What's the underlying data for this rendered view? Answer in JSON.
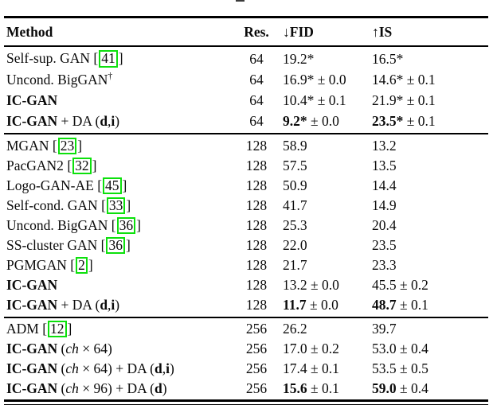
{
  "colors": {
    "text": "#0a0a0a",
    "cite_border": "#0ce00c",
    "rule": "#000000",
    "background": "#ffffff"
  },
  "header": {
    "method": "Method",
    "res": "Res.",
    "fid": "↓FID",
    "is": "↑IS"
  },
  "groups": [
    {
      "rows": [
        {
          "method": [
            {
              "t": "Self-sup. GAN ",
              "s": "r"
            },
            {
              "t": "[",
              "s": "r"
            },
            {
              "cite": "41"
            },
            {
              "t": "]",
              "s": "r"
            }
          ],
          "res": "64",
          "fid": {
            "m": "19.2*",
            "pm": "",
            "b": false
          },
          "is": {
            "m": "16.5*",
            "pm": "",
            "b": false
          }
        },
        {
          "method": [
            {
              "t": "Uncond. BigGAN",
              "s": "r"
            },
            {
              "t": "†",
              "s": "sup"
            }
          ],
          "res": "64",
          "fid": {
            "m": "16.9*",
            "pm": "± 0.0",
            "b": false
          },
          "is": {
            "m": "14.6*",
            "pm": "± 0.1",
            "b": false
          }
        },
        {
          "method": [
            {
              "t": "IC-GAN",
              "s": "b"
            }
          ],
          "res": "64",
          "fid": {
            "m": "10.4*",
            "pm": "± 0.1",
            "b": false
          },
          "is": {
            "m": "21.9*",
            "pm": "± 0.1",
            "b": false
          }
        },
        {
          "method": [
            {
              "t": "IC-GAN",
              "s": "b"
            },
            {
              "t": " + DA (",
              "s": "r"
            },
            {
              "t": "d",
              "s": "b"
            },
            {
              "t": ",",
              "s": "r"
            },
            {
              "t": "i",
              "s": "b"
            },
            {
              "t": ")",
              "s": "r"
            }
          ],
          "res": "64",
          "fid": {
            "m": "9.2*",
            "pm": "± 0.0",
            "b": true
          },
          "is": {
            "m": "23.5*",
            "pm": "± 0.1",
            "b": true
          }
        }
      ]
    },
    {
      "rows": [
        {
          "method": [
            {
              "t": "MGAN ",
              "s": "r"
            },
            {
              "t": "[",
              "s": "r"
            },
            {
              "cite": "23"
            },
            {
              "t": "]",
              "s": "r"
            }
          ],
          "res": "128",
          "fid": {
            "m": "58.9",
            "pm": "",
            "b": false
          },
          "is": {
            "m": "13.2",
            "pm": "",
            "b": false
          }
        },
        {
          "method": [
            {
              "t": "PacGAN2 ",
              "s": "r"
            },
            {
              "t": "[",
              "s": "r"
            },
            {
              "cite": "32"
            },
            {
              "t": "]",
              "s": "r"
            }
          ],
          "res": "128",
          "fid": {
            "m": "57.5",
            "pm": "",
            "b": false
          },
          "is": {
            "m": "13.5",
            "pm": "",
            "b": false
          }
        },
        {
          "method": [
            {
              "t": "Logo-GAN-AE ",
              "s": "r"
            },
            {
              "t": "[",
              "s": "r"
            },
            {
              "cite": "45"
            },
            {
              "t": "]",
              "s": "r"
            }
          ],
          "res": "128",
          "fid": {
            "m": "50.9",
            "pm": "",
            "b": false
          },
          "is": {
            "m": "14.4",
            "pm": "",
            "b": false
          }
        },
        {
          "method": [
            {
              "t": "Self-cond. GAN ",
              "s": "r"
            },
            {
              "t": "[",
              "s": "r"
            },
            {
              "cite": "33"
            },
            {
              "t": "]",
              "s": "r"
            }
          ],
          "res": "128",
          "fid": {
            "m": "41.7",
            "pm": "",
            "b": false
          },
          "is": {
            "m": "14.9",
            "pm": "",
            "b": false
          }
        },
        {
          "method": [
            {
              "t": "Uncond. BigGAN ",
              "s": "r"
            },
            {
              "t": "[",
              "s": "r"
            },
            {
              "cite": "36"
            },
            {
              "t": "]",
              "s": "r"
            }
          ],
          "res": "128",
          "fid": {
            "m": "25.3",
            "pm": "",
            "b": false
          },
          "is": {
            "m": "20.4",
            "pm": "",
            "b": false
          }
        },
        {
          "method": [
            {
              "t": "SS-cluster GAN ",
              "s": "r"
            },
            {
              "t": "[",
              "s": "r"
            },
            {
              "cite": "36"
            },
            {
              "t": "]",
              "s": "r"
            }
          ],
          "res": "128",
          "fid": {
            "m": "22.0",
            "pm": "",
            "b": false
          },
          "is": {
            "m": "23.5",
            "pm": "",
            "b": false
          }
        },
        {
          "method": [
            {
              "t": "PGMGAN ",
              "s": "r"
            },
            {
              "t": "[",
              "s": "r"
            },
            {
              "cite": "2"
            },
            {
              "t": "]",
              "s": "r"
            }
          ],
          "res": "128",
          "fid": {
            "m": "21.7",
            "pm": "",
            "b": false
          },
          "is": {
            "m": "23.3",
            "pm": "",
            "b": false
          }
        },
        {
          "method": [
            {
              "t": "IC-GAN",
              "s": "b"
            }
          ],
          "res": "128",
          "fid": {
            "m": "13.2",
            "pm": "± 0.0",
            "b": false
          },
          "is": {
            "m": "45.5",
            "pm": "± 0.2",
            "b": false
          }
        },
        {
          "method": [
            {
              "t": "IC-GAN",
              "s": "b"
            },
            {
              "t": " + DA (",
              "s": "r"
            },
            {
              "t": "d",
              "s": "b"
            },
            {
              "t": ",",
              "s": "r"
            },
            {
              "t": "i",
              "s": "b"
            },
            {
              "t": ")",
              "s": "r"
            }
          ],
          "res": "128",
          "fid": {
            "m": "11.7",
            "pm": "± 0.0",
            "b": true
          },
          "is": {
            "m": "48.7",
            "pm": "± 0.1",
            "b": true
          }
        }
      ]
    },
    {
      "rows": [
        {
          "method": [
            {
              "t": "ADM ",
              "s": "r"
            },
            {
              "t": "[",
              "s": "r"
            },
            {
              "cite": "12"
            },
            {
              "t": "]",
              "s": "r"
            }
          ],
          "res": "256",
          "fid": {
            "m": "26.2",
            "pm": "",
            "b": false
          },
          "is": {
            "m": "39.7",
            "pm": "",
            "b": false
          }
        },
        {
          "method": [
            {
              "t": "IC-GAN",
              "s": "b"
            },
            {
              "t": " (",
              "s": "r"
            },
            {
              "t": "ch",
              "s": "i"
            },
            {
              "t": " × 64)",
              "s": "r"
            }
          ],
          "res": "256",
          "fid": {
            "m": "17.0",
            "pm": "± 0.2",
            "b": false
          },
          "is": {
            "m": "53.0",
            "pm": "± 0.4",
            "b": false
          }
        },
        {
          "method": [
            {
              "t": "IC-GAN",
              "s": "b"
            },
            {
              "t": " (",
              "s": "r"
            },
            {
              "t": "ch",
              "s": "i"
            },
            {
              "t": " × 64) + DA (",
              "s": "r"
            },
            {
              "t": "d",
              "s": "b"
            },
            {
              "t": ",",
              "s": "r"
            },
            {
              "t": "i",
              "s": "b"
            },
            {
              "t": ")",
              "s": "r"
            }
          ],
          "res": "256",
          "fid": {
            "m": "17.4",
            "pm": "± 0.1",
            "b": false
          },
          "is": {
            "m": "53.5",
            "pm": "± 0.5",
            "b": false
          }
        },
        {
          "method": [
            {
              "t": "IC-GAN",
              "s": "b"
            },
            {
              "t": " (",
              "s": "r"
            },
            {
              "t": "ch",
              "s": "i"
            },
            {
              "t": " × 96) + DA (",
              "s": "r"
            },
            {
              "t": "d",
              "s": "b"
            },
            {
              "t": ")",
              "s": "r"
            }
          ],
          "res": "256",
          "fid": {
            "m": "15.6",
            "pm": "± 0.1",
            "b": true
          },
          "is": {
            "m": "59.0",
            "pm": "± 0.4",
            "b": true
          }
        }
      ]
    }
  ]
}
